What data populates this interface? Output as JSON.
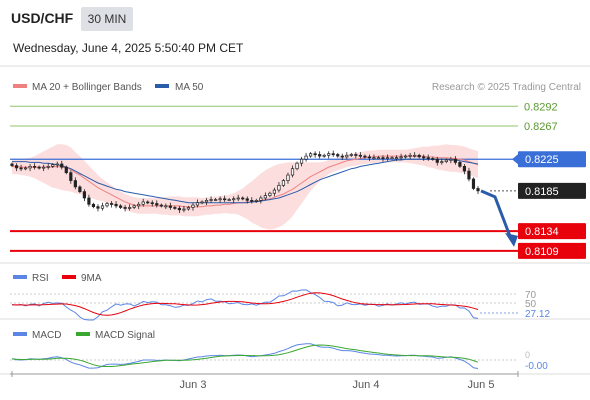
{
  "header": {
    "symbol": "USD/CHF",
    "timeframe": "30 MIN",
    "datetime": "Wednesday, June 4, 2025 5:50:40 PM CET"
  },
  "legend": {
    "ma20_bb": "MA 20 + Bollinger Bands",
    "ma50": "MA 50",
    "credit": "Research © 2025 Trading Central"
  },
  "colors": {
    "ma20": "#f08080",
    "ma50": "#2a5caa",
    "band_fill": "#fbd3d3",
    "green": "#8fc46a",
    "blue_level": "#3a6fd8",
    "red_level": "#e8000b",
    "arrow": "#2a5caa",
    "candle": "#222222",
    "rsi": "#5b86e5",
    "rsi_ma": "#e8000b",
    "macd": "#5b86e5",
    "macd_signal": "#3aa830"
  },
  "chart_data": [
    {
      "type": "candlestick",
      "title": "USD/CHF 30 MIN",
      "price_range": [
        0.8095,
        0.8305
      ],
      "x_ticks": [
        "Jun 3",
        "Jun 4",
        "Jun 5"
      ],
      "levels": [
        {
          "value": 0.8292,
          "label": "0.8292",
          "kind": "resistance",
          "color": "#8fc46a"
        },
        {
          "value": 0.8267,
          "label": "0.8267",
          "kind": "resistance",
          "color": "#8fc46a"
        },
        {
          "value": 0.8225,
          "label": "0.8225",
          "kind": "pivot",
          "color": "#3a6fd8"
        },
        {
          "value": 0.8185,
          "label": "0.8185",
          "kind": "last",
          "color": "#222222"
        },
        {
          "value": 0.8134,
          "label": "0.8134",
          "kind": "support",
          "color": "#e8000b"
        },
        {
          "value": 0.8109,
          "label": "0.8109",
          "kind": "support",
          "color": "#e8000b"
        }
      ],
      "close": [
        0.8217,
        0.8214,
        0.8213,
        0.8214,
        0.8216,
        0.8215,
        0.8214,
        0.8215,
        0.8216,
        0.8218,
        0.8219,
        0.8215,
        0.8208,
        0.8198,
        0.819,
        0.8184,
        0.8176,
        0.8168,
        0.8165,
        0.8163,
        0.8166,
        0.8169,
        0.8168,
        0.8166,
        0.8164,
        0.8163,
        0.8164,
        0.8166,
        0.8168,
        0.8171,
        0.817,
        0.8169,
        0.8167,
        0.8166,
        0.8166,
        0.8164,
        0.8163,
        0.8161,
        0.8162,
        0.8164,
        0.8167,
        0.817,
        0.8171,
        0.8173,
        0.8174,
        0.8174,
        0.8175,
        0.8174,
        0.8174,
        0.8175,
        0.8176,
        0.8175,
        0.8173,
        0.8172,
        0.8173,
        0.8176,
        0.8179,
        0.8182,
        0.8186,
        0.8192,
        0.8198,
        0.8205,
        0.8213,
        0.822,
        0.8225,
        0.8229,
        0.8232,
        0.8231,
        0.8229,
        0.823,
        0.8232,
        0.8231,
        0.8229,
        0.8228,
        0.823,
        0.8231,
        0.823,
        0.8229,
        0.8228,
        0.8227,
        0.8227,
        0.8227,
        0.8226,
        0.8227,
        0.8227,
        0.8227,
        0.8228,
        0.8229,
        0.823,
        0.823,
        0.8228,
        0.8227,
        0.8226,
        0.8225,
        0.8221,
        0.8222,
        0.8224,
        0.8225,
        0.8221,
        0.8216,
        0.821,
        0.82,
        0.8188,
        0.8185
      ],
      "ma20": [
        0.8216,
        0.8216,
        0.8215,
        0.8215,
        0.8215,
        0.8215,
        0.8215,
        0.8215,
        0.8215,
        0.8215,
        0.8216,
        0.8215,
        0.8214,
        0.8212,
        0.8208,
        0.8205,
        0.8201,
        0.8197,
        0.8193,
        0.8189,
        0.8186,
        0.8183,
        0.818,
        0.8177,
        0.8174,
        0.8171,
        0.8169,
        0.8167,
        0.8166,
        0.8166,
        0.8166,
        0.8166,
        0.8166,
        0.8166,
        0.8166,
        0.8166,
        0.8166,
        0.8166,
        0.8165,
        0.8165,
        0.8165,
        0.8165,
        0.8165,
        0.8166,
        0.8166,
        0.8167,
        0.8167,
        0.8168,
        0.8168,
        0.8169,
        0.817,
        0.817,
        0.8171,
        0.8171,
        0.8172,
        0.8173,
        0.8174,
        0.8175,
        0.8177,
        0.8179,
        0.8181,
        0.8184,
        0.8187,
        0.8191,
        0.8195,
        0.8199,
        0.8203,
        0.8206,
        0.8209,
        0.8212,
        0.8215,
        0.8217,
        0.8219,
        0.8221,
        0.8223,
        0.8224,
        0.8225,
        0.8226,
        0.8227,
        0.8228,
        0.8228,
        0.8229,
        0.8229,
        0.8229,
        0.8229,
        0.8229,
        0.8229,
        0.8229,
        0.8229,
        0.8229,
        0.8229,
        0.8229,
        0.8228,
        0.8228,
        0.8227,
        0.8227,
        0.8227,
        0.8226,
        0.8226,
        0.8225,
        0.8224,
        0.8222,
        0.822,
        0.8218
      ],
      "ma50": [
        0.8222,
        0.8222,
        0.8222,
        0.8222,
        0.8221,
        0.8221,
        0.8221,
        0.822,
        0.822,
        0.8219,
        0.8218,
        0.8217,
        0.8215,
        0.8213,
        0.821,
        0.8207,
        0.8204,
        0.8201,
        0.8198,
        0.8195,
        0.8193,
        0.8191,
        0.8189,
        0.8187,
        0.8186,
        0.8184,
        0.8183,
        0.8182,
        0.8181,
        0.818,
        0.8179,
        0.8178,
        0.8177,
        0.8176,
        0.8175,
        0.8174,
        0.8173,
        0.8172,
        0.8171,
        0.817,
        0.817,
        0.817,
        0.817,
        0.817,
        0.817,
        0.817,
        0.817,
        0.817,
        0.817,
        0.817,
        0.817,
        0.817,
        0.817,
        0.8171,
        0.8171,
        0.8172,
        0.8173,
        0.8174,
        0.8175,
        0.8176,
        0.8178,
        0.818,
        0.8182,
        0.8184,
        0.8187,
        0.819,
        0.8193,
        0.8196,
        0.8199,
        0.8201,
        0.8203,
        0.8205,
        0.8207,
        0.8209,
        0.8211,
        0.8213,
        0.8214,
        0.8216,
        0.8217,
        0.8218,
        0.8219,
        0.822,
        0.8221,
        0.8222,
        0.8223,
        0.8224,
        0.8224,
        0.8225,
        0.8225,
        0.8225,
        0.8225,
        0.8225,
        0.8225,
        0.8225,
        0.8225,
        0.8225,
        0.8225,
        0.8224,
        0.8224,
        0.8223,
        0.8222,
        0.8221,
        0.822,
        0.8219
      ],
      "bb_width": [
        0.001,
        0.001,
        0.001,
        0.0011,
        0.0012,
        0.0014,
        0.0017,
        0.002,
        0.0023,
        0.0026,
        0.0028,
        0.0029,
        0.0029,
        0.0028,
        0.0026,
        0.0024,
        0.0022,
        0.002,
        0.0018,
        0.0016,
        0.0014,
        0.0013,
        0.0012,
        0.0011,
        0.001,
        0.001,
        0.001,
        0.001,
        0.001,
        0.001,
        0.001,
        0.001,
        0.001,
        0.0011,
        0.0011,
        0.0012,
        0.0012,
        0.0012,
        0.0012,
        0.0012,
        0.0012,
        0.0012,
        0.0011,
        0.0011,
        0.0011,
        0.0011,
        0.0011,
        0.0011,
        0.0012,
        0.0013,
        0.0015,
        0.0018,
        0.0022,
        0.0026,
        0.003,
        0.0034,
        0.0037,
        0.0039,
        0.004,
        0.004,
        0.0039,
        0.0037,
        0.0034,
        0.003,
        0.0026,
        0.0022,
        0.0018,
        0.0015,
        0.0012,
        0.001,
        0.0009,
        0.0008,
        0.0008,
        0.0008,
        0.0008,
        0.0008,
        0.0008,
        0.0008,
        0.0008,
        0.0008,
        0.0008,
        0.0008,
        0.0008,
        0.0008,
        0.0008,
        0.0008,
        0.0008,
        0.0008,
        0.0009,
        0.001,
        0.0011,
        0.0012,
        0.0013,
        0.0014,
        0.0015,
        0.0016,
        0.0017,
        0.0017,
        0.0017,
        0.0017,
        0.0017,
        0.0017,
        0.0017,
        0.0017
      ]
    },
    {
      "type": "line",
      "title": "RSI",
      "series": [
        {
          "name": "RSI"
        },
        {
          "name": "9MA"
        }
      ],
      "levels": [
        "70",
        "50"
      ],
      "last_value": "27.12"
    },
    {
      "type": "line",
      "title": "MACD",
      "series": [
        {
          "name": "MACD"
        },
        {
          "name": "MACD Signal"
        }
      ],
      "last_value": "-0.00"
    }
  ]
}
